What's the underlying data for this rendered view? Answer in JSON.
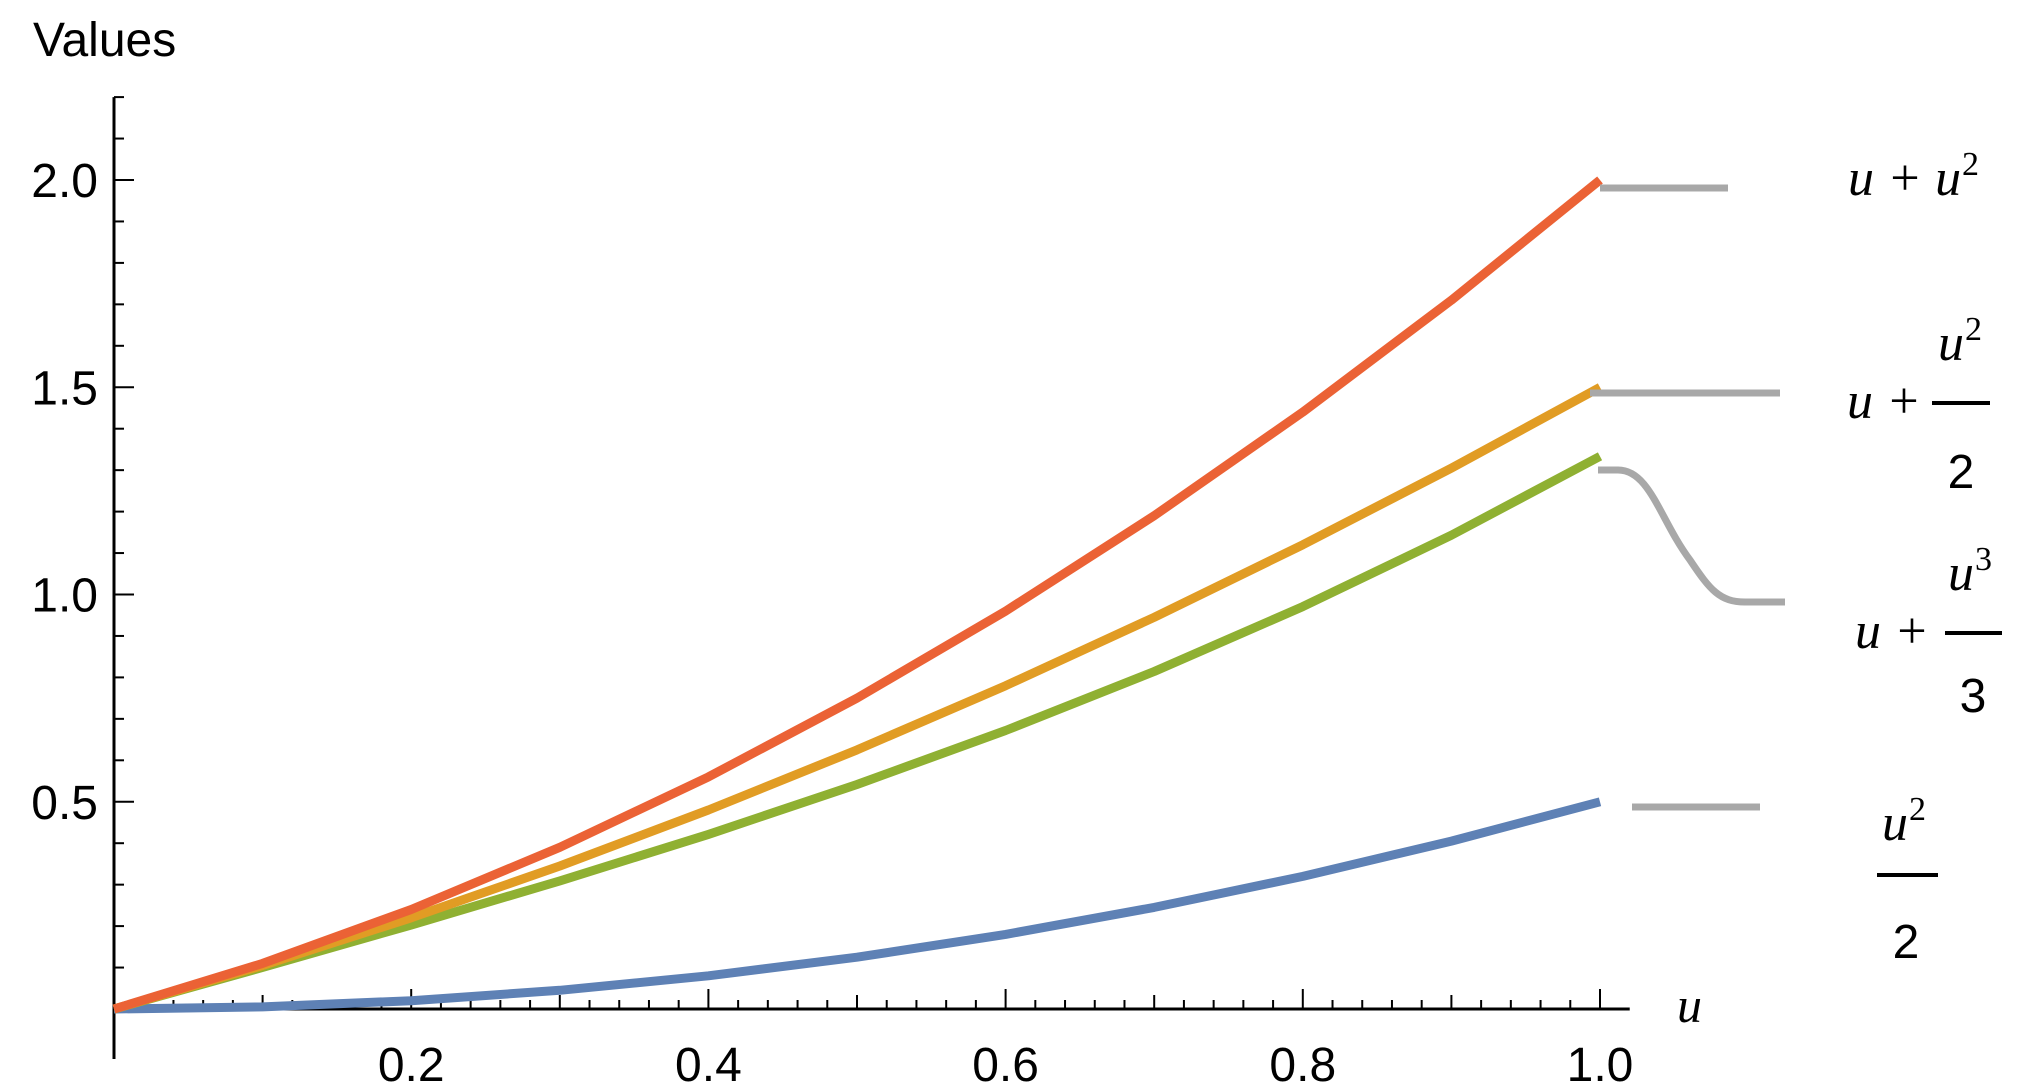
{
  "chart_data": {
    "type": "line",
    "ylabel": "Values",
    "xlabel": "u",
    "xlim": [
      0,
      1.02
    ],
    "ylim": [
      0,
      2.2
    ],
    "x_ticks": [
      "0.2",
      "0.4",
      "0.6",
      "0.8",
      "1.0"
    ],
    "y_ticks": [
      "0.5",
      "1.0",
      "1.5",
      "2.0"
    ],
    "grid": false,
    "series": [
      {
        "key": "half_u_sq",
        "label": {
          "num": "u",
          "sup": "2",
          "den": "2"
        },
        "color": "#5e81b5",
        "x": [
          0,
          0.1,
          0.2,
          0.3,
          0.4,
          0.5,
          0.6,
          0.7,
          0.8,
          0.9,
          1.0
        ],
        "y": [
          0,
          0.005,
          0.02,
          0.045,
          0.08,
          0.125,
          0.18,
          0.245,
          0.32,
          0.405,
          0.5
        ]
      },
      {
        "key": "u_plus_u3_over_3",
        "label": {
          "prefix": "u +",
          "num": "u",
          "sup": "3",
          "den": "3"
        },
        "color": "#8fb032",
        "x": [
          0,
          0.1,
          0.2,
          0.3,
          0.4,
          0.5,
          0.6,
          0.7,
          0.8,
          0.9,
          1.0
        ],
        "y": [
          0,
          0.1003,
          0.2027,
          0.309,
          0.4213,
          0.5417,
          0.672,
          0.8143,
          0.9707,
          1.143,
          1.3333
        ]
      },
      {
        "key": "u_plus_u2_over_2",
        "label": {
          "prefix": "u +",
          "num": "u",
          "sup": "2",
          "den": "2"
        },
        "color": "#e19c24",
        "x": [
          0,
          0.1,
          0.2,
          0.3,
          0.4,
          0.5,
          0.6,
          0.7,
          0.8,
          0.9,
          1.0
        ],
        "y": [
          0,
          0.105,
          0.22,
          0.345,
          0.48,
          0.625,
          0.78,
          0.945,
          1.12,
          1.305,
          1.5
        ]
      },
      {
        "key": "u_plus_u2",
        "label": {
          "text": "u + u",
          "sup": "2"
        },
        "color": "#eb6235",
        "x": [
          0,
          0.1,
          0.2,
          0.3,
          0.4,
          0.5,
          0.6,
          0.7,
          0.8,
          0.9,
          1.0
        ],
        "y": [
          0,
          0.11,
          0.24,
          0.39,
          0.56,
          0.75,
          0.96,
          1.19,
          1.44,
          1.71,
          2.0
        ]
      }
    ]
  }
}
